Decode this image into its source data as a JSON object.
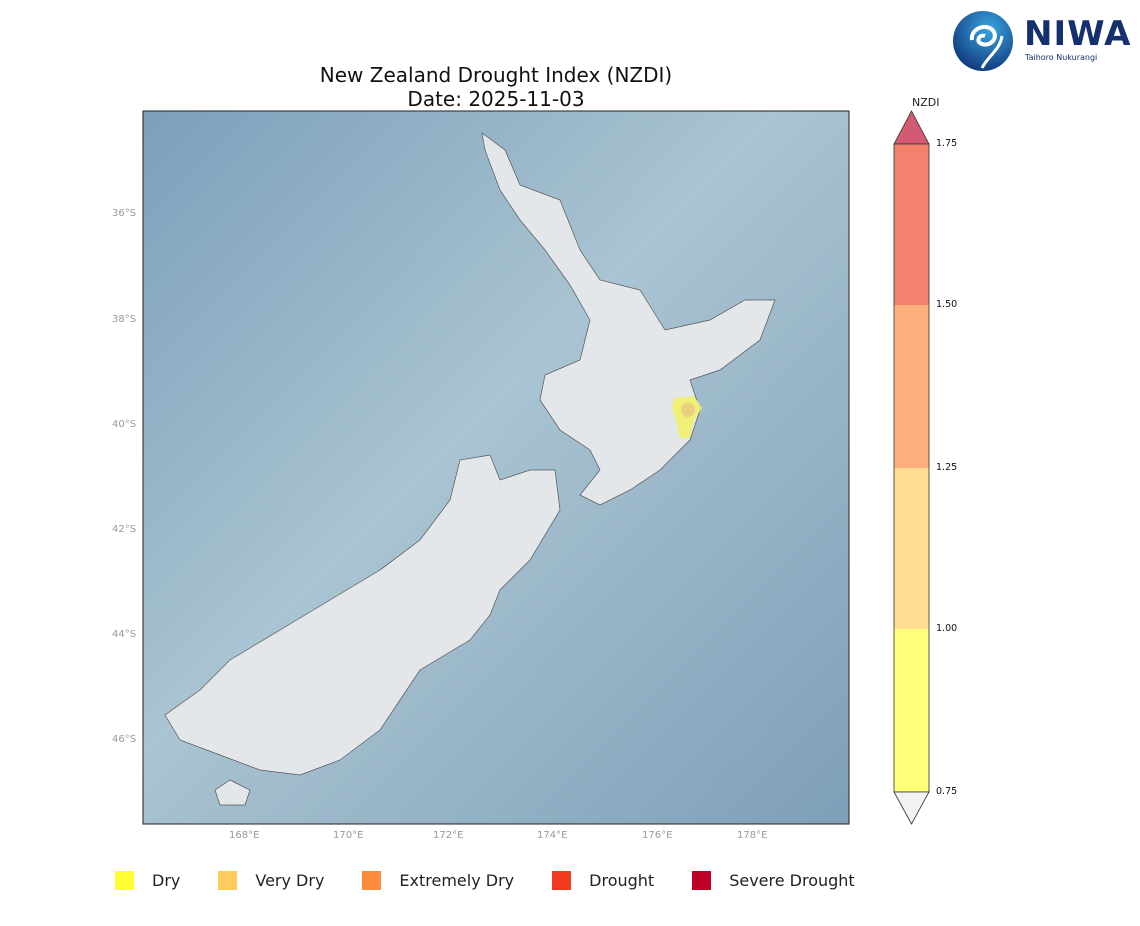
{
  "title": "New Zealand Drought Index (NZDI)",
  "subtitle": "Date: 2025-11-03",
  "logo": {
    "name": "NIWA",
    "tagline": "Taihoro Nukurangi"
  },
  "map": {
    "lon_ticks": [
      "168°E",
      "170°E",
      "172°E",
      "174°E",
      "176°E",
      "178°E"
    ],
    "lat_ticks": [
      "36°S",
      "38°S",
      "40°S",
      "42°S",
      "44°S",
      "46°S"
    ],
    "ocean_color": "#8fb0c6",
    "land_color": "#e4e7ea",
    "highlighted_region": {
      "category": "Dry",
      "area": "Hawke's Bay (east coast, North Island)",
      "color": "#f1f06a"
    }
  },
  "colorbar": {
    "label": "NZDI",
    "ticks": [
      "1.75",
      "1.50",
      "1.25",
      "1.00",
      "0.75"
    ],
    "colors": [
      "#d45a72",
      "#f4806e",
      "#fdb07d",
      "#fedc94",
      "#ffff7a",
      "#f2f2f2"
    ]
  },
  "legend": [
    {
      "label": "Dry",
      "color": "#ffff33"
    },
    {
      "label": "Very Dry",
      "color": "#fecc5c"
    },
    {
      "label": "Extremely Dry",
      "color": "#fd8d3c"
    },
    {
      "label": "Drought",
      "color": "#f03b20"
    },
    {
      "label": "Severe Drought",
      "color": "#bd0026"
    }
  ]
}
